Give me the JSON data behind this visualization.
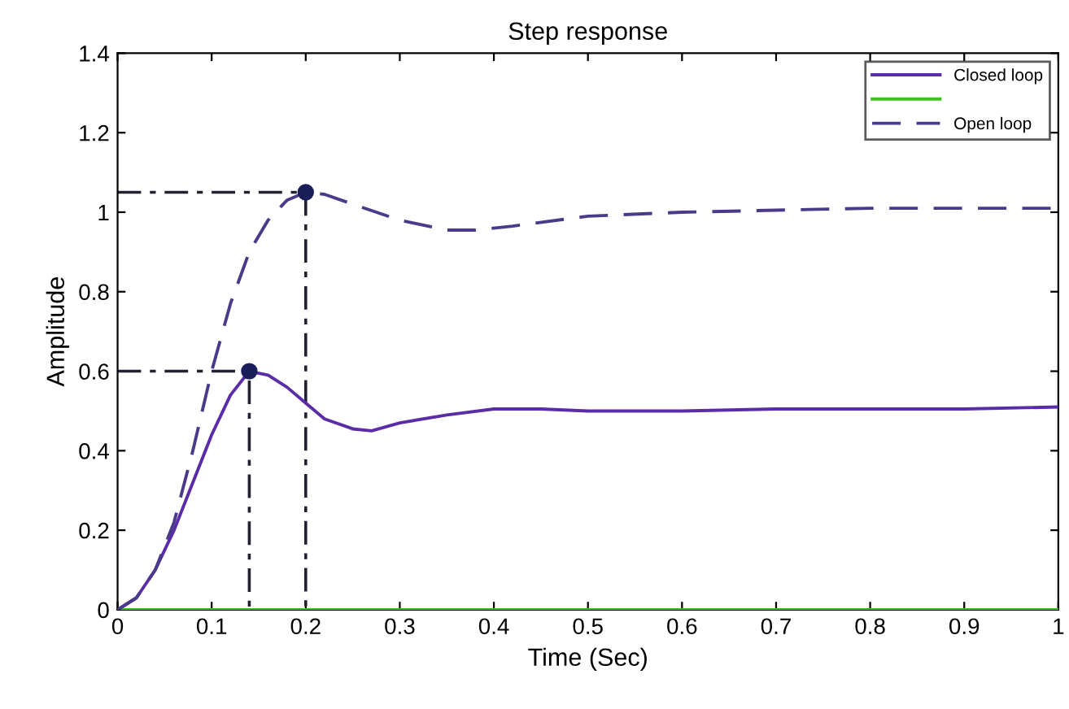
{
  "chart_data": {
    "type": "line",
    "title": "Step response",
    "xlabel": "Time (Sec)",
    "ylabel": "Amplitude",
    "xlim": [
      0,
      1
    ],
    "xticks": [
      0,
      0.1,
      0.2,
      0.3,
      0.4,
      0.5,
      0.6,
      0.7,
      0.8,
      0.9,
      1
    ],
    "ylim": [
      0,
      1.4
    ],
    "yticks": [
      0,
      0.2,
      0.4,
      0.6,
      0.8,
      1,
      1.2,
      1.4
    ],
    "grid": false,
    "legend": "top right",
    "series": [
      {
        "name": "Closed loop",
        "color": "#5a2ca8",
        "line_style": "solid",
        "x": [
          0,
          0.02,
          0.04,
          0.06,
          0.08,
          0.1,
          0.12,
          0.14,
          0.16,
          0.18,
          0.2,
          0.22,
          0.25,
          0.27,
          0.3,
          0.35,
          0.4,
          0.45,
          0.5,
          0.6,
          0.7,
          0.8,
          0.9,
          1.0
        ],
        "values": [
          0,
          0.03,
          0.1,
          0.2,
          0.32,
          0.44,
          0.54,
          0.6,
          0.59,
          0.56,
          0.52,
          0.48,
          0.455,
          0.45,
          0.47,
          0.49,
          0.505,
          0.505,
          0.5,
          0.5,
          0.505,
          0.505,
          0.505,
          0.51
        ]
      },
      {
        "color": "#40c020",
        "line_style": "solid",
        "x": [
          0,
          1
        ],
        "values": [
          0,
          0
        ]
      },
      {
        "name": "Open loop",
        "color": "#4b3a8a",
        "line_style": "dashed",
        "x": [
          0,
          0.02,
          0.04,
          0.06,
          0.08,
          0.1,
          0.12,
          0.14,
          0.16,
          0.18,
          0.2,
          0.22,
          0.25,
          0.3,
          0.35,
          0.38,
          0.42,
          0.5,
          0.6,
          0.7,
          0.8,
          0.9,
          1.0
        ],
        "values": [
          0,
          0.03,
          0.1,
          0.22,
          0.4,
          0.6,
          0.77,
          0.9,
          0.98,
          1.03,
          1.05,
          1.045,
          1.02,
          0.98,
          0.955,
          0.955,
          0.965,
          0.99,
          1.0,
          1.005,
          1.01,
          1.01,
          1.01
        ]
      },
      {
        "type": "line",
        "color": "#222233",
        "line_style": "dashdot",
        "x": [
          0,
          0.14,
          0.14
        ],
        "values": [
          0.6,
          0.6,
          0
        ]
      },
      {
        "type": "line",
        "color": "#222233",
        "line_style": "dashdot",
        "x": [
          0,
          0.2,
          0.2
        ],
        "values": [
          1.05,
          1.05,
          0
        ]
      },
      {
        "type": "scatter",
        "color": "#1a1f5a",
        "marker": "circle",
        "x": [
          0.14,
          0.2
        ],
        "values": [
          0.6,
          1.05
        ]
      }
    ]
  }
}
